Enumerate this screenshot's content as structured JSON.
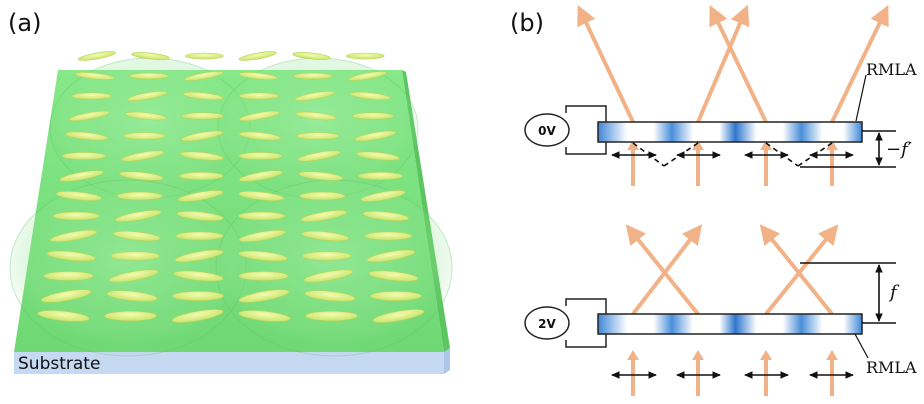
{
  "panel_a": {
    "label": "(a)",
    "substrate_label": "Substrate",
    "colors": {
      "lc_layer": "#7be07f",
      "substrate": "#c6d9f2",
      "molecule": "#d9f080"
    }
  },
  "panel_b": {
    "label": "(b)",
    "top": {
      "voltage": "0V",
      "device_label": "RMLA",
      "distance_label": "−f′"
    },
    "bottom": {
      "voltage": "2V",
      "device_label": "RMLA",
      "distance_label": "f"
    },
    "colors": {
      "ray": "#f2b287",
      "lens_dark": "#3a7fd0",
      "lens_light": "#ffffff"
    }
  }
}
